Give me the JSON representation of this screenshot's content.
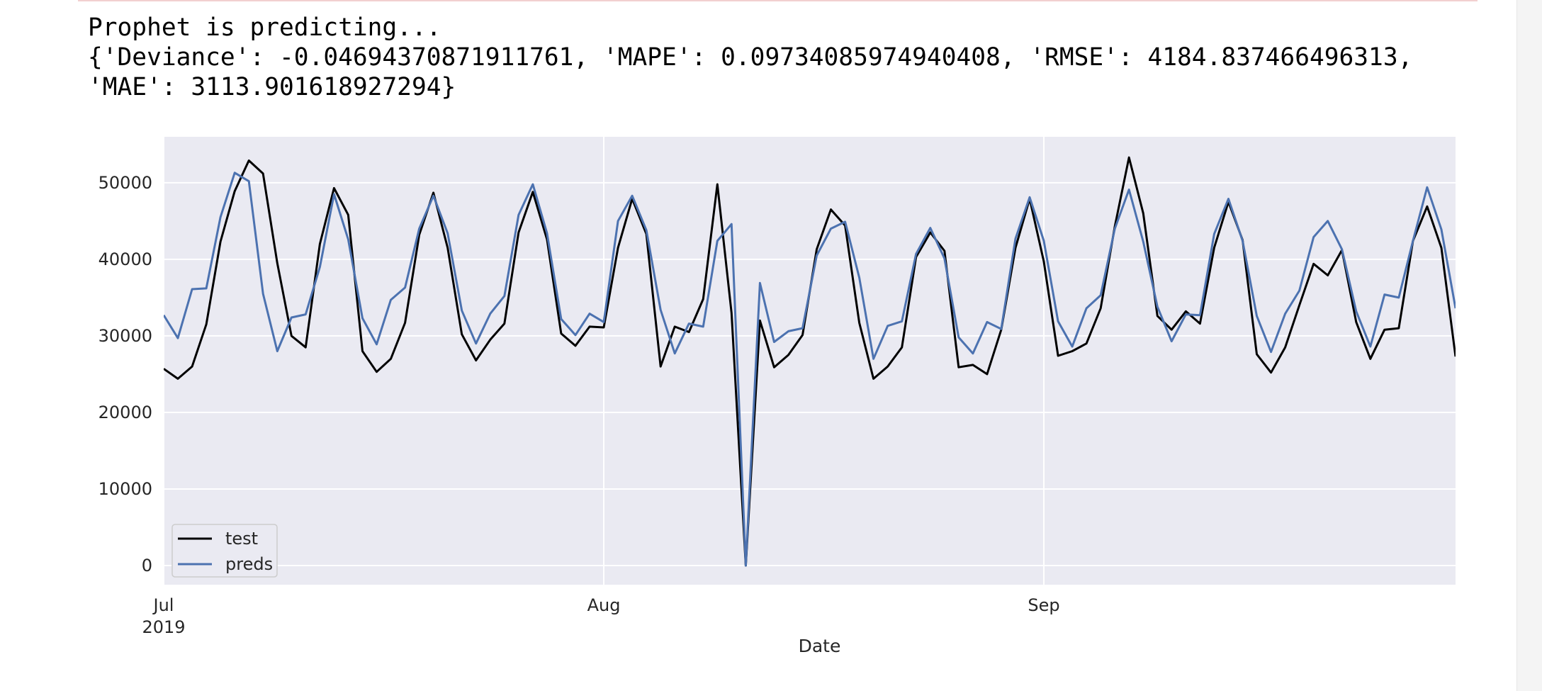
{
  "output": {
    "line1": "Prophet is predicting...",
    "line2": "{'Deviance': -0.04694370871911761, 'MAPE': 0.09734085974940408, 'RMSE': 4184.837466496313,",
    "line3": "'MAE': 3113.901618927294}"
  },
  "chart_data": {
    "type": "line",
    "title": "",
    "xlabel": "Date",
    "ylabel": "",
    "x_tick_labels": [
      {
        "label": "Jul",
        "sublabel": "2019",
        "date": "2019-07-01"
      },
      {
        "label": "Aug",
        "sublabel": "",
        "date": "2019-08-01"
      },
      {
        "label": "Sep",
        "sublabel": "",
        "date": "2019-09-01"
      }
    ],
    "y_ticks": [
      "0",
      "10000",
      "20000",
      "30000",
      "40000",
      "50000"
    ],
    "x_range": [
      "2019-07-01",
      "2019-09-30"
    ],
    "ylim": [
      -2500,
      56000
    ],
    "grid": true,
    "legend_position": "lower-left",
    "colors": {
      "background": "#eaeaf2",
      "grid": "#ffffff",
      "test": "#000000",
      "preds": "#4c72b0"
    },
    "series": [
      {
        "name": "test",
        "values": [
          25700,
          24400,
          26000,
          31500,
          42300,
          48900,
          52900,
          51200,
          39500,
          30000,
          28500,
          42000,
          49300,
          45800,
          28000,
          25300,
          27000,
          31700,
          43200,
          48700,
          41500,
          30200,
          26800,
          29500,
          31600,
          43500,
          48800,
          42600,
          30300,
          28700,
          31200,
          31100,
          41500,
          47900,
          43300,
          26000,
          31200,
          30500,
          34800,
          49800,
          33000,
          0,
          32000,
          25900,
          27500,
          30100,
          41300,
          46500,
          44400,
          31700,
          24400,
          26000,
          28500,
          40300,
          43500,
          41100,
          25900,
          26200,
          25000,
          30800,
          41500,
          47900,
          39700,
          27400,
          28000,
          29000,
          33600,
          44300,
          53300,
          46000,
          32600,
          30800,
          33200,
          31600,
          41500,
          47500,
          42500,
          27600,
          25200,
          28500,
          34000,
          39400,
          37900,
          41200,
          31800,
          27000,
          30800,
          31000,
          42400,
          46900,
          41500,
          27300
        ],
        "values_note": ""
      },
      {
        "name": "preds",
        "values": [
          32700,
          29700,
          36100,
          36200,
          45500,
          51300,
          50200,
          35500,
          28000,
          32400,
          32800,
          39000,
          48500,
          42600,
          32300,
          28900,
          34700,
          36300,
          44000,
          48300,
          43400,
          33300,
          29000,
          32900,
          35200,
          45800,
          49800,
          43400,
          32200,
          30100,
          32900,
          31800,
          45000,
          48300,
          43800,
          33400,
          27700,
          31600,
          31200,
          42400,
          44600,
          0,
          36900,
          29200,
          30600,
          31000,
          40500,
          44000,
          44900,
          37600,
          27000,
          31300,
          31900,
          40700,
          44100,
          40100,
          29800,
          27700,
          31800,
          30900,
          42700,
          48100,
          42400,
          31900,
          28600,
          33600,
          35300,
          44000,
          49100,
          42300,
          33800,
          29300,
          32800,
          32700,
          43300,
          47900,
          42400,
          32600,
          27900,
          32900,
          35900,
          42900,
          45000,
          41300,
          33200,
          28600,
          35400,
          35000,
          42400,
          49400,
          43900,
          33600
        ]
      }
    ]
  }
}
